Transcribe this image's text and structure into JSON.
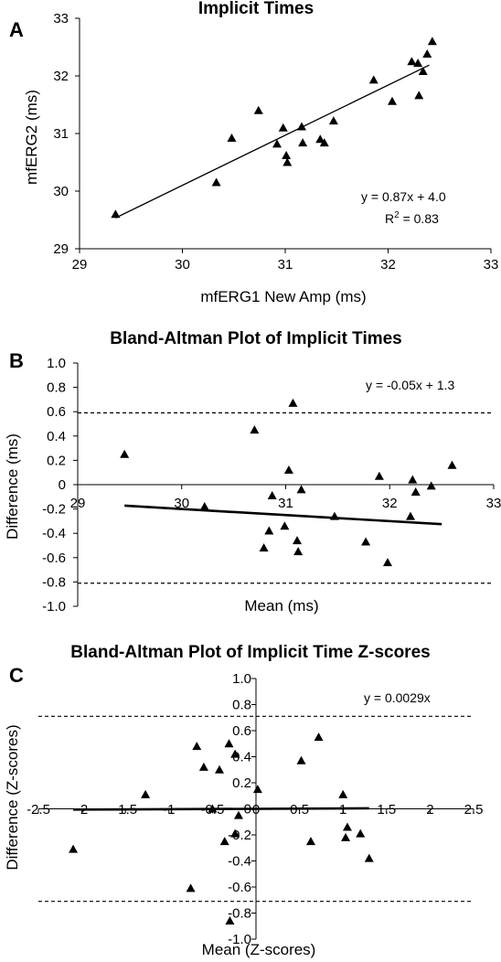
{
  "chart_data": [
    {
      "panel": "A",
      "type": "scatter",
      "title": "Implicit Times",
      "xlabel": "mfERG1 New Amp (ms)",
      "ylabel": "mfERG2 (ms)",
      "xlim": [
        29,
        33
      ],
      "ylim": [
        29,
        33
      ],
      "xticks": [
        "29",
        "30",
        "31",
        "32",
        "33"
      ],
      "yticks": [
        "29",
        "30",
        "31",
        "32",
        "33"
      ],
      "grid": false,
      "equation": "y = 0.87x + 4.0",
      "r2_label": "R",
      "r2_sup": "2",
      "r2_value": " = 0.83",
      "fit": {
        "slope": 0.87,
        "intercept": 4.0,
        "x_range": [
          29.35,
          32.4
        ]
      },
      "points": [
        {
          "x": 29.35,
          "y": 29.6
        },
        {
          "x": 30.33,
          "y": 30.15
        },
        {
          "x": 30.48,
          "y": 30.92
        },
        {
          "x": 30.74,
          "y": 31.4
        },
        {
          "x": 30.92,
          "y": 30.82
        },
        {
          "x": 30.98,
          "y": 31.1
        },
        {
          "x": 31.01,
          "y": 30.62
        },
        {
          "x": 31.02,
          "y": 30.5
        },
        {
          "x": 31.16,
          "y": 31.12
        },
        {
          "x": 31.17,
          "y": 30.84
        },
        {
          "x": 31.34,
          "y": 30.9
        },
        {
          "x": 31.38,
          "y": 30.84
        },
        {
          "x": 31.47,
          "y": 31.22
        },
        {
          "x": 31.86,
          "y": 31.93
        },
        {
          "x": 32.04,
          "y": 31.56
        },
        {
          "x": 32.23,
          "y": 32.25
        },
        {
          "x": 32.29,
          "y": 32.22
        },
        {
          "x": 32.3,
          "y": 31.66
        },
        {
          "x": 32.34,
          "y": 32.08
        },
        {
          "x": 32.38,
          "y": 32.38
        },
        {
          "x": 32.43,
          "y": 32.6
        }
      ]
    },
    {
      "panel": "B",
      "type": "scatter",
      "title": "Bland-Altman Plot of Implicit Times",
      "xlabel": "Mean (ms)",
      "ylabel": "Difference (ms)",
      "xlim": [
        29,
        33
      ],
      "ylim": [
        -1.0,
        1.0
      ],
      "xticks": [
        "29",
        "30",
        "31",
        "32",
        "33"
      ],
      "yticks": [
        "1.0",
        "0.8",
        "0.6",
        "0.4",
        "0.2",
        "0",
        "-0.2",
        "-0.4",
        "-0.6",
        "-0.8",
        "-1.0"
      ],
      "grid": false,
      "equation": "y = -0.05x + 1.3",
      "limits_of_agreement": [
        0.59,
        -0.81
      ],
      "fit": {
        "slope": -0.05,
        "intercept": 1.3,
        "x_range": [
          29.45,
          32.5
        ]
      },
      "points": [
        {
          "x": 29.45,
          "y": 0.25
        },
        {
          "x": 30.22,
          "y": -0.18
        },
        {
          "x": 30.7,
          "y": 0.45
        },
        {
          "x": 30.79,
          "y": -0.52
        },
        {
          "x": 30.84,
          "y": -0.38
        },
        {
          "x": 30.87,
          "y": -0.09
        },
        {
          "x": 30.99,
          "y": -0.34
        },
        {
          "x": 31.03,
          "y": 0.12
        },
        {
          "x": 31.07,
          "y": 0.67
        },
        {
          "x": 31.11,
          "y": -0.46
        },
        {
          "x": 31.12,
          "y": -0.55
        },
        {
          "x": 31.15,
          "y": -0.04
        },
        {
          "x": 31.47,
          "y": -0.26
        },
        {
          "x": 31.77,
          "y": -0.47
        },
        {
          "x": 31.9,
          "y": 0.07
        },
        {
          "x": 31.98,
          "y": -0.64
        },
        {
          "x": 32.22,
          "y": 0.04
        },
        {
          "x": 32.25,
          "y": -0.06
        },
        {
          "x": 32.2,
          "y": -0.26
        },
        {
          "x": 32.4,
          "y": -0.01
        },
        {
          "x": 32.6,
          "y": 0.16
        }
      ]
    },
    {
      "panel": "C",
      "type": "scatter",
      "title": "Bland-Altman Plot of Implicit Time Z-scores",
      "xlabel": "Mean (Z-scores)",
      "ylabel": "Difference (Z-scores)",
      "xlim": [
        -2.5,
        2.5
      ],
      "ylim": [
        -1.0,
        1.0
      ],
      "xticks": [
        "-2.5",
        "-2",
        "-1.5",
        "-1",
        "-0.5",
        "0",
        "0.5",
        "1",
        "1.5",
        "2",
        "2.5"
      ],
      "yticks": [
        "1.0",
        "0.8",
        "0.6",
        "0.4",
        "0.2",
        "0",
        "-0.2",
        "-0.4",
        "-0.6",
        "-0.8",
        "-1.0"
      ],
      "grid": false,
      "equation": "y = 0.0029x",
      "limits_of_agreement": [
        0.71,
        -0.71
      ],
      "fit": {
        "slope": 0.0029,
        "intercept": 0,
        "x_range": [
          -2.1,
          1.3
        ]
      },
      "points": [
        {
          "x": -2.1,
          "y": -0.31
        },
        {
          "x": -1.27,
          "y": 0.11
        },
        {
          "x": -0.75,
          "y": -0.61
        },
        {
          "x": -0.68,
          "y": 0.48
        },
        {
          "x": -0.6,
          "y": 0.32
        },
        {
          "x": -0.5,
          "y": 0.0
        },
        {
          "x": -0.42,
          "y": 0.3
        },
        {
          "x": -0.36,
          "y": -0.25
        },
        {
          "x": -0.31,
          "y": 0.5
        },
        {
          "x": -0.3,
          "y": -0.86
        },
        {
          "x": -0.24,
          "y": -0.19
        },
        {
          "x": -0.24,
          "y": 0.42
        },
        {
          "x": -0.2,
          "y": -0.05
        },
        {
          "x": 0.02,
          "y": 0.15
        },
        {
          "x": 0.52,
          "y": 0.37
        },
        {
          "x": 0.63,
          "y": -0.25
        },
        {
          "x": 0.72,
          "y": 0.55
        },
        {
          "x": 1.0,
          "y": 0.11
        },
        {
          "x": 1.03,
          "y": -0.22
        },
        {
          "x": 1.05,
          "y": -0.14
        },
        {
          "x": 1.2,
          "y": -0.19
        },
        {
          "x": 1.3,
          "y": -0.38
        }
      ]
    }
  ]
}
